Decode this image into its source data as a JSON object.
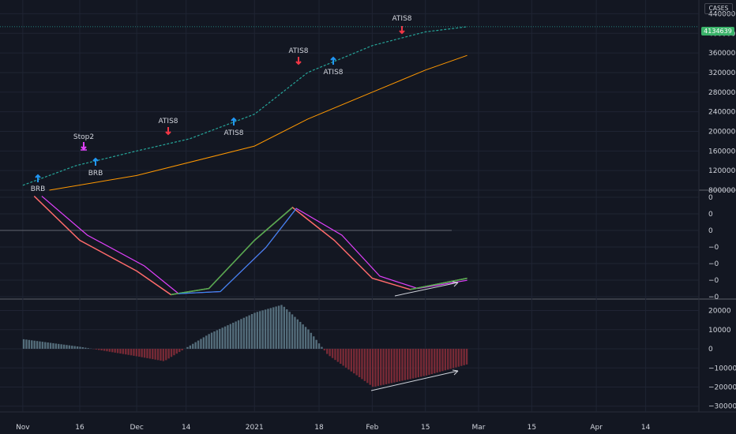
{
  "price_axis": {
    "scale_label": "CASES",
    "last_value": "4134639",
    "ticks": [
      "4400000",
      "4000000",
      "3600000",
      "3200000",
      "2800000",
      "2400000",
      "2000000",
      "1600000",
      "1200000",
      "800000"
    ]
  },
  "osc_axis": {
    "ticks": [
      "0",
      "0",
      "0",
      "−0",
      "−0",
      "−0",
      "−0"
    ]
  },
  "hist_axis": {
    "ticks": [
      "20000",
      "10000",
      "0",
      "−10000",
      "−20000",
      "−30000"
    ]
  },
  "time_axis": {
    "ticks": [
      "Nov",
      "16",
      "Dec",
      "14",
      "2021",
      "18",
      "Feb",
      "15",
      "Mar",
      "15",
      "Apr",
      "14"
    ]
  },
  "annotations": [
    {
      "label": "BRB",
      "arrow": "up",
      "color": "#2196f3"
    },
    {
      "label": "Stop2",
      "arrow": "down",
      "color": "#e040fb"
    },
    {
      "label": "BRB",
      "arrow": "up",
      "color": "#2196f3"
    },
    {
      "label": "ATIS8",
      "arrow": "down",
      "color": "#f23645"
    },
    {
      "label": "ATIS8",
      "arrow": "up",
      "color": "#2196f3"
    },
    {
      "label": "ATIS8",
      "arrow": "down",
      "color": "#f23645"
    },
    {
      "label": "ATIS8",
      "arrow": "up",
      "color": "#2196f3"
    },
    {
      "label": "ATIS8",
      "arrow": "down",
      "color": "#f23645"
    }
  ],
  "colors": {
    "background": "#131722",
    "grid": "#1f2433",
    "price_line": "#26a69a",
    "ma_line": "#ff9800",
    "osc_fast": "#ff6b6b",
    "osc_fast_up": "#4caf50",
    "osc_slow": "#e040fb",
    "osc_slow_up": "#2196f3",
    "hist_pos": "#607d8b",
    "hist_neg": "#8b2e3a"
  },
  "chart_data": [
    {
      "type": "line",
      "title": "",
      "xlabel": "",
      "ylabel": "CASES",
      "x_range": [
        "2020-11-01",
        "2021-04-30"
      ],
      "ylim": [
        800000,
        4600000
      ],
      "series": [
        {
          "x": [
            "2020-11-01",
            "2020-11-15",
            "2020-12-01",
            "2020-12-15",
            "2021-01-01",
            "2021-01-15",
            "2021-02-01",
            "2021-02-15",
            "2021-02-26"
          ],
          "values": [
            900000,
            1300000,
            1600000,
            1850000,
            2350000,
            3200000,
            3750000,
            4030000,
            4134639
          ]
        },
        {
          "x": [
            "2020-11-08",
            "2020-12-01",
            "2021-01-01",
            "2021-01-15",
            "2021-02-01",
            "2021-02-15",
            "2021-02-26"
          ],
          "values": [
            800000,
            1100000,
            1700000,
            2250000,
            2800000,
            3250000,
            3550000
          ]
        }
      ]
    },
    {
      "type": "line",
      "title": "",
      "xlabel": "",
      "ylabel": "",
      "series": [
        {
          "x": [
            "2020-11-04",
            "2020-11-16",
            "2020-12-01",
            "2020-12-10",
            "2020-12-20",
            "2021-01-01",
            "2021-01-11",
            "2021-01-22",
            "2021-02-01",
            "2021-02-11",
            "2021-02-26"
          ],
          "values": [
            0.98,
            0.55,
            0.25,
            0.02,
            0.08,
            0.55,
            0.87,
            0.55,
            0.18,
            0.07,
            0.18
          ]
        },
        {
          "x": [
            "2020-11-06",
            "2020-11-18",
            "2020-12-03",
            "2020-12-12",
            "2020-12-23",
            "2021-01-04",
            "2021-01-12",
            "2021-01-24",
            "2021-02-03",
            "2021-02-13",
            "2021-02-26"
          ],
          "values": [
            0.98,
            0.6,
            0.3,
            0.03,
            0.05,
            0.48,
            0.86,
            0.6,
            0.2,
            0.08,
            0.16
          ]
        }
      ]
    },
    {
      "type": "bar",
      "title": "",
      "xlabel": "",
      "ylabel": "",
      "ylim": [
        -33000,
        26000
      ],
      "x": [
        "2020-11-01",
        "2020-11-16",
        "2020-12-01",
        "2020-12-08",
        "2020-12-20",
        "2021-01-01",
        "2021-01-08",
        "2021-01-15",
        "2021-01-20",
        "2021-02-01",
        "2021-02-15",
        "2021-02-26"
      ],
      "values": [
        5000,
        1000,
        -4000,
        -6500,
        8000,
        19000,
        23000,
        10000,
        -3000,
        -20000,
        -14000,
        -8000
      ]
    }
  ]
}
